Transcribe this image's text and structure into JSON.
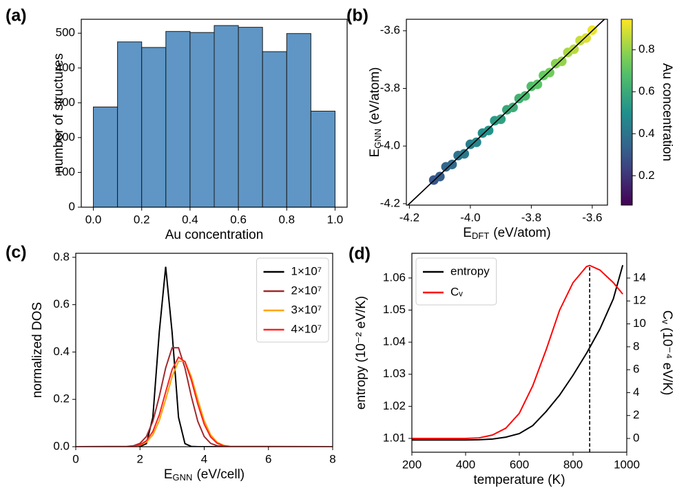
{
  "chart_data": [
    {
      "type": "histogram",
      "label": "(a)",
      "bins": [
        0,
        0.1,
        0.2,
        0.3,
        0.4,
        0.5,
        0.6,
        0.7,
        0.8,
        0.9,
        1.0
      ],
      "values": [
        288,
        475,
        459,
        505,
        502,
        522,
        517,
        447,
        499,
        276
      ],
      "color": "#5f96c5",
      "edgecolor": "#1a1a1a",
      "xlim": [
        -0.05,
        1.05
      ],
      "xticks": [
        {
          "value": 0,
          "label": "0.0"
        },
        0.2,
        0.4,
        0.6,
        0.8,
        {
          "value": 1,
          "label": "1.0"
        }
      ],
      "ylim": [
        0,
        540
      ],
      "yticks": [
        0,
        100,
        200,
        300,
        400,
        500
      ],
      "xlabel": "Au concentration",
      "ylabel": "number of structures"
    },
    {
      "type": "scatter",
      "label": "(b)",
      "x": [
        -4.12,
        -4.1,
        -4.08,
        -4.06,
        -4.04,
        -4.02,
        -4.0,
        -3.98,
        -3.96,
        -3.94,
        -3.92,
        -3.9,
        -3.88,
        -3.86,
        -3.84,
        -3.82,
        -3.8,
        -3.78,
        -3.76,
        -3.74,
        -3.72,
        -3.7,
        -3.68,
        -3.66,
        -3.64,
        -3.62,
        -3.6
      ],
      "y": [
        -4.118,
        -4.106,
        -4.072,
        -4.064,
        -4.033,
        -4.027,
        -3.994,
        -3.987,
        -3.955,
        -3.946,
        -3.912,
        -3.907,
        -3.874,
        -3.866,
        -3.835,
        -3.826,
        -3.793,
        -3.786,
        -3.755,
        -3.745,
        -3.714,
        -3.706,
        -3.675,
        -3.664,
        -3.634,
        -3.625,
        -3.598
      ],
      "c": [
        0.3,
        0.32,
        0.35,
        0.37,
        0.4,
        0.42,
        0.44,
        0.47,
        0.49,
        0.51,
        0.54,
        0.56,
        0.59,
        0.61,
        0.63,
        0.66,
        0.68,
        0.71,
        0.73,
        0.75,
        0.78,
        0.8,
        0.83,
        0.85,
        0.87,
        0.9,
        0.92
      ],
      "colormap": "viridis",
      "clim": [
        0.06,
        0.945
      ],
      "cticks": [
        0.2,
        0.4,
        0.6,
        0.8
      ],
      "clabel": "Au concentration",
      "identity_line": true,
      "xlim": [
        -4.21,
        -3.55
      ],
      "xticks": [
        -4.2,
        {
          "value": -4.0,
          "label": "-4.0"
        },
        -3.8,
        -3.6
      ],
      "ylim": [
        -4.205,
        -3.56
      ],
      "yticks": [
        -4.2,
        {
          "value": -4.0,
          "label": "-4.0"
        },
        -3.8,
        -3.6
      ],
      "xlabel": [
        "E",
        "DFT",
        "(eV/atom)"
      ],
      "ylabel": [
        "E",
        "GNN",
        "(eV/atom)"
      ]
    },
    {
      "type": "line",
      "label": "(c)",
      "x": [
        0,
        1.6,
        1.8,
        2.0,
        2.2,
        2.4,
        2.6,
        2.8,
        3.0,
        3.2,
        3.4,
        3.6,
        3.8,
        4.0,
        4.2,
        4.4,
        4.6,
        4.8,
        8
      ],
      "series": [
        {
          "name": "1×10⁷",
          "color": "#000000",
          "values": [
            0,
            0,
            0,
            0.001,
            0.013,
            0.124,
            0.483,
            0.76,
            0.483,
            0.124,
            0.013,
            0.001,
            0,
            0,
            0,
            0,
            0,
            0,
            0
          ]
        },
        {
          "name": "2×10⁷",
          "color": "#a0282c",
          "values": [
            0,
            0.001,
            0.004,
            0.014,
            0.043,
            0.107,
            0.212,
            0.333,
            0.418,
            0.418,
            0.333,
            0.212,
            0.107,
            0.043,
            0.014,
            0.004,
            0.001,
            0,
            0
          ]
        },
        {
          "name": "3×10⁷",
          "color": "#ffa500",
          "values": [
            0,
            0,
            0.001,
            0.006,
            0.019,
            0.05,
            0.11,
            0.2,
            0.296,
            0.361,
            0.361,
            0.296,
            0.2,
            0.11,
            0.05,
            0.019,
            0.006,
            0.001,
            0
          ]
        },
        {
          "name": "4×10⁷",
          "color": "#ff2020",
          "values": [
            0,
            0,
            0.002,
            0.008,
            0.025,
            0.064,
            0.134,
            0.231,
            0.326,
            0.378,
            0.359,
            0.281,
            0.18,
            0.095,
            0.041,
            0.015,
            0.004,
            0.001,
            0
          ]
        }
      ],
      "xlim": [
        0,
        8
      ],
      "xticks": [
        0,
        2,
        4,
        6,
        8
      ],
      "ylim": [
        0,
        0.817
      ],
      "yticks": [
        {
          "value": 0,
          "label": "0.0"
        },
        0.2,
        0.4,
        0.6,
        0.8
      ],
      "xlabel": [
        "E",
        "GNN",
        "(eV/cell)"
      ],
      "ylabel": "normalized DOS",
      "legend": "upper right"
    },
    {
      "type": "line",
      "label": "(d)",
      "x": [
        200,
        300,
        400,
        450,
        500,
        550,
        600,
        650,
        700,
        750,
        800,
        850,
        862,
        900,
        950,
        985
      ],
      "series": [
        {
          "name": "entropy",
          "color": "#000000",
          "values": [
            1.0095,
            1.0095,
            1.0095,
            1.0096,
            1.0098,
            1.0104,
            1.0115,
            1.014,
            1.0184,
            1.0235,
            1.0297,
            1.0365,
            1.0383,
            1.0441,
            1.0535,
            1.064
          ]
        },
        {
          "name": "Cᵥ",
          "color": "#ff0000",
          "axis": "y2",
          "values": [
            0,
            0,
            0,
            0.05,
            0.3,
            0.9,
            2.2,
            4.6,
            7.75,
            11.2,
            13.6,
            15.0,
            15.1,
            14.7,
            13.6,
            12.6
          ]
        }
      ],
      "peak_line": true,
      "xlim": [
        200,
        1000
      ],
      "xticks": [
        200,
        400,
        600,
        800,
        1000
      ],
      "ylim": [
        1.0057,
        1.0677
      ],
      "yticks": [
        1.01,
        1.02,
        1.03,
        1.04,
        1.05,
        1.06
      ],
      "y2lim": [
        -1.2,
        16.16
      ],
      "y2ticks": [
        0,
        2,
        4,
        6,
        8,
        10,
        12,
        14
      ],
      "xlabel": "temperature (K)",
      "ylabel": "entropy (10⁻² eV/K)",
      "y2label": "Cᵥ (10⁻⁴ eV/K)",
      "legend": "upper left"
    }
  ]
}
